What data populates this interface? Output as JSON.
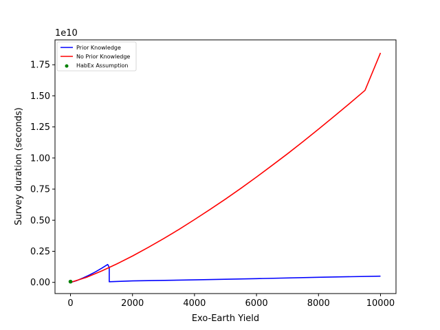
{
  "chart_data": {
    "type": "line",
    "xlabel": "Exo-Earth Yield",
    "ylabel": "Survey duration (seconds)",
    "y_offset_label": "1e10",
    "y_scale": 10000000000,
    "xlim": [
      -500,
      10500
    ],
    "ylim": [
      -0.09,
      1.95
    ],
    "x_ticks": [
      0,
      2000,
      4000,
      6000,
      8000,
      10000
    ],
    "x_tick_labels": [
      "0",
      "2000",
      "4000",
      "6000",
      "8000",
      "10000"
    ],
    "y_ticks": [
      0.0,
      0.25,
      0.5,
      0.75,
      1.0,
      1.25,
      1.5,
      1.75
    ],
    "y_tick_labels": [
      "0.00",
      "0.25",
      "0.50",
      "0.75",
      "1.00",
      "1.25",
      "1.50",
      "1.75"
    ],
    "grid": false,
    "legend_position": "top-left",
    "legend": [
      {
        "label": "Prior Knowledge",
        "kind": "line",
        "color": "#0000ff"
      },
      {
        "label": "No Prior Knowledge",
        "kind": "line",
        "color": "#ff0000"
      },
      {
        "label": "HabEx Assumption",
        "kind": "point",
        "color": "#008000"
      }
    ],
    "series": [
      {
        "name": "Prior Knowledge",
        "color": "#0000ff",
        "x": [
          0,
          200,
          400,
          600,
          800,
          1000,
          1200,
          1250,
          1250,
          2000,
          4000,
          6000,
          8000,
          10000
        ],
        "y": [
          0.0,
          0.014,
          0.035,
          0.058,
          0.084,
          0.113,
          0.144,
          0.12,
          0.005,
          0.012,
          0.02,
          0.03,
          0.041,
          0.05
        ]
      },
      {
        "name": "No Prior Knowledge",
        "color": "#ff0000",
        "x": [
          0,
          500,
          1000,
          1500,
          2000,
          2500,
          3000,
          3500,
          4000,
          4500,
          5000,
          5500,
          6000,
          6500,
          7000,
          7500,
          8000,
          8500,
          9000,
          9500,
          10000
        ],
        "y": [
          0.0,
          0.039,
          0.091,
          0.149,
          0.212,
          0.28,
          0.351,
          0.426,
          0.505,
          0.586,
          0.67,
          0.757,
          0.847,
          0.94,
          1.034,
          1.132,
          1.232,
          1.334,
          1.438,
          1.544,
          1.845
        ]
      },
      {
        "name": "HabEx Assumption",
        "color": "#008000",
        "kind": "point",
        "x": [
          0
        ],
        "y": [
          0.006
        ]
      }
    ]
  }
}
